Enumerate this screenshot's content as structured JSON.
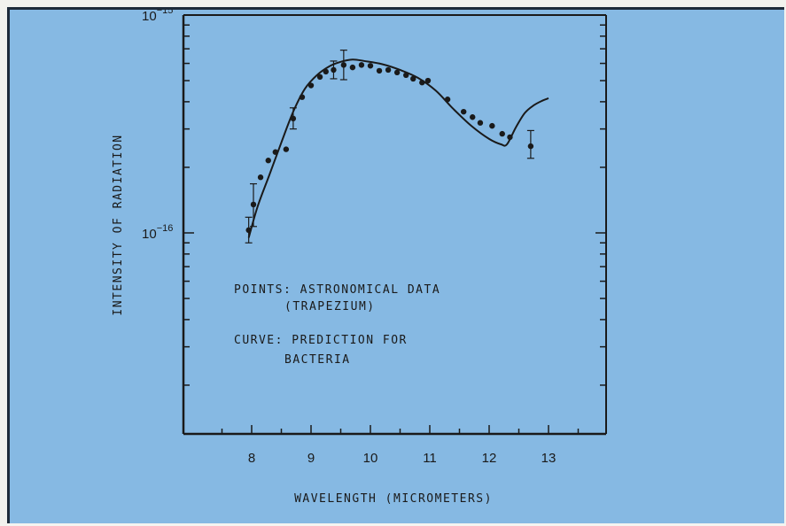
{
  "chart_data": {
    "type": "scatter",
    "title": "",
    "xlabel": "WAVELENGTH (MICROMETERS)",
    "ylabel": "INTENSITY OF RADIATION",
    "xlim": [
      7.0,
      14.0
    ],
    "ylim": [
      1.5e-17,
      1e-15
    ],
    "yscale": "log",
    "x_ticks": [
      "8",
      "9",
      "10",
      "11",
      "12",
      "13"
    ],
    "y_tick_labels": [
      {
        "value": 1e-15,
        "base": "10",
        "exp": "−15"
      },
      {
        "value": 1e-16,
        "base": "10",
        "exp": "−16"
      }
    ],
    "annotations": [
      "POINTS: ASTRONOMICAL DATA",
      "(TRAPEZIUM)",
      "CURVE: PREDICTION FOR",
      "BACTERIA"
    ],
    "series": [
      {
        "name": "POINTS: ASTRONOMICAL DATA",
        "kind": "points",
        "points": [
          {
            "x": 7.95,
            "y": 1.03e-16,
            "err": [
              9e-17,
              1.18e-16
            ]
          },
          {
            "x": 8.03,
            "y": 1.35e-16,
            "err": [
              1.07e-16,
              1.68e-16
            ]
          },
          {
            "x": 8.15,
            "y": 1.8e-16
          },
          {
            "x": 8.28,
            "y": 2.15e-16
          },
          {
            "x": 8.4,
            "y": 2.35e-16
          },
          {
            "x": 8.58,
            "y": 2.42e-16
          },
          {
            "x": 8.7,
            "y": 3.35e-16,
            "err": [
              3e-16,
              3.75e-16
            ]
          },
          {
            "x": 8.85,
            "y": 4.2e-16
          },
          {
            "x": 9.0,
            "y": 4.75e-16
          },
          {
            "x": 9.15,
            "y": 5.2e-16
          },
          {
            "x": 9.25,
            "y": 5.5e-16
          },
          {
            "x": 9.38,
            "y": 5.6e-16,
            "err": [
              5.1e-16,
              6.15e-16
            ]
          },
          {
            "x": 9.55,
            "y": 5.9e-16,
            "err": [
              5.05e-16,
              6.9e-16
            ]
          },
          {
            "x": 9.7,
            "y": 5.75e-16
          },
          {
            "x": 9.85,
            "y": 5.9e-16
          },
          {
            "x": 10.0,
            "y": 5.85e-16
          },
          {
            "x": 10.15,
            "y": 5.55e-16
          },
          {
            "x": 10.3,
            "y": 5.6e-16
          },
          {
            "x": 10.45,
            "y": 5.45e-16
          },
          {
            "x": 10.6,
            "y": 5.3e-16
          },
          {
            "x": 10.72,
            "y": 5.1e-16
          },
          {
            "x": 10.87,
            "y": 4.9e-16
          },
          {
            "x": 10.97,
            "y": 5e-16
          },
          {
            "x": 11.3,
            "y": 4.1e-16
          },
          {
            "x": 11.57,
            "y": 3.6e-16
          },
          {
            "x": 11.72,
            "y": 3.4e-16
          },
          {
            "x": 11.85,
            "y": 3.2e-16
          },
          {
            "x": 12.05,
            "y": 3.1e-16
          },
          {
            "x": 12.22,
            "y": 2.85e-16
          },
          {
            "x": 12.35,
            "y": 2.75e-16
          },
          {
            "x": 12.7,
            "y": 2.5e-16,
            "err": [
              2.2e-16,
              2.95e-16
            ]
          }
        ]
      },
      {
        "name": "CURVE: PREDICTION FOR BACTERIA",
        "kind": "line",
        "points": [
          {
            "x": 7.95,
            "y": 9.5e-17
          },
          {
            "x": 8.1,
            "y": 1.32e-16
          },
          {
            "x": 8.3,
            "y": 1.85e-16
          },
          {
            "x": 8.5,
            "y": 2.6e-16
          },
          {
            "x": 8.7,
            "y": 3.6e-16
          },
          {
            "x": 8.9,
            "y": 4.6e-16
          },
          {
            "x": 9.1,
            "y": 5.3e-16
          },
          {
            "x": 9.3,
            "y": 5.8e-16
          },
          {
            "x": 9.5,
            "y": 6.1e-16
          },
          {
            "x": 9.7,
            "y": 6.25e-16
          },
          {
            "x": 9.9,
            "y": 6.15e-16
          },
          {
            "x": 10.2,
            "y": 5.95e-16
          },
          {
            "x": 10.5,
            "y": 5.6e-16
          },
          {
            "x": 10.8,
            "y": 5.15e-16
          },
          {
            "x": 11.1,
            "y": 4.5e-16
          },
          {
            "x": 11.4,
            "y": 3.7e-16
          },
          {
            "x": 11.7,
            "y": 3.1e-16
          },
          {
            "x": 12.0,
            "y": 2.7e-16
          },
          {
            "x": 12.2,
            "y": 2.55e-16
          },
          {
            "x": 12.3,
            "y": 2.55e-16
          },
          {
            "x": 12.45,
            "y": 3.05e-16
          },
          {
            "x": 12.6,
            "y": 3.55e-16
          },
          {
            "x": 12.75,
            "y": 3.85e-16
          },
          {
            "x": 12.9,
            "y": 4.05e-16
          },
          {
            "x": 13.0,
            "y": 4.15e-16
          }
        ]
      }
    ],
    "grid": false,
    "legend": "none"
  },
  "colors": {
    "background": "#86b9e3",
    "ink": "#1a1a1a"
  }
}
